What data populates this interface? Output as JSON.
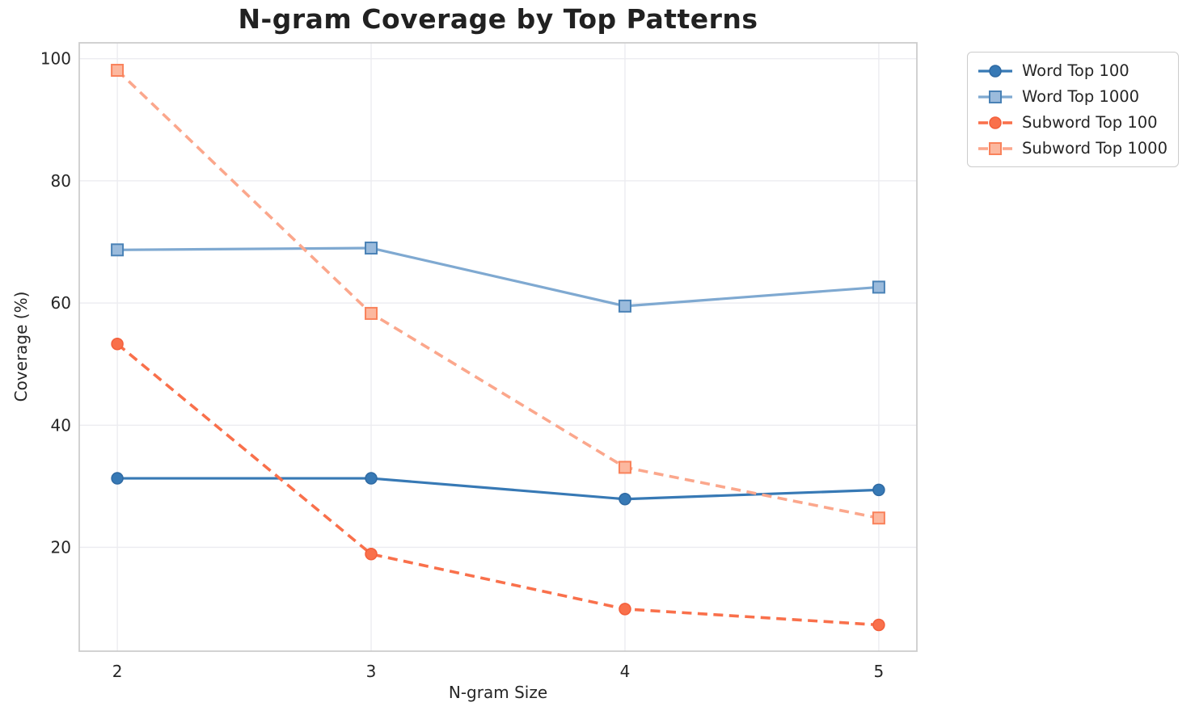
{
  "chart_data": {
    "type": "line",
    "title": "N-gram Coverage by Top Patterns",
    "xlabel": "N-gram Size",
    "ylabel": "Coverage (%)",
    "x": [
      2,
      3,
      4,
      5
    ],
    "xticks": [
      "2",
      "3",
      "4",
      "5"
    ],
    "yticks": [
      20,
      40,
      60,
      80,
      100
    ],
    "xlim": [
      1.85,
      5.15
    ],
    "ylim": [
      3.0,
      102.6
    ],
    "grid": true,
    "legend_position": "outside-top-right",
    "series": [
      {
        "name": "Word Top 100",
        "values": [
          31.3,
          31.3,
          27.9,
          29.4
        ],
        "color": "#3779B5",
        "marker": "circle",
        "marker_fill": "#3779B5",
        "marker_edge": "#2F6AA3",
        "line_style": "solid"
      },
      {
        "name": "Word Top 1000",
        "values": [
          68.7,
          69.0,
          59.5,
          62.6
        ],
        "color": "#7FA9D1",
        "marker": "square",
        "marker_fill": "#9BBBDC",
        "marker_edge": "#4A82B6",
        "line_style": "solid"
      },
      {
        "name": "Subword Top 100",
        "values": [
          53.3,
          18.9,
          9.9,
          7.3
        ],
        "color": "#F9704B",
        "marker": "circle",
        "marker_fill": "#F9704B",
        "marker_edge": "#F35F3B",
        "line_style": "dashed"
      },
      {
        "name": "Subword Top 1000",
        "values": [
          98.1,
          58.3,
          33.1,
          24.8
        ],
        "color": "#FBA78C",
        "marker": "square",
        "marker_fill": "#FCB89F",
        "marker_edge": "#F9825B",
        "line_style": "dashed"
      }
    ]
  },
  "colors": {
    "background": "#FFFFFF",
    "grid_line": "#ECECF0",
    "spine": "#CDCDCD",
    "tick_text": "#262626",
    "title_text": "#212121",
    "legend_border": "#CCCCCC"
  }
}
